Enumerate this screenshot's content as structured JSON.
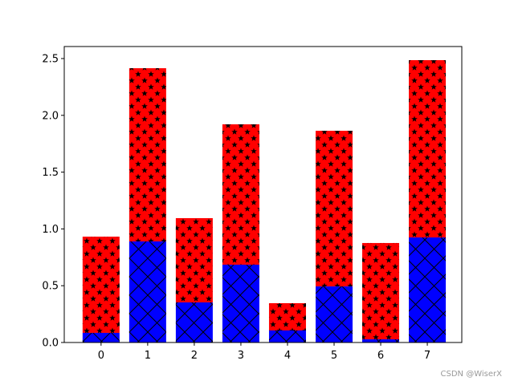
{
  "chart_data": {
    "type": "bar",
    "stacked": true,
    "categories": [
      "0",
      "1",
      "2",
      "3",
      "4",
      "5",
      "6",
      "7"
    ],
    "series": [
      {
        "color": "#0000ff",
        "hatch": "x",
        "values": [
          0.085,
          0.89,
          0.353,
          0.685,
          0.106,
          0.494,
          0.028,
          0.925
        ]
      },
      {
        "color": "#ff0000",
        "hatch": "*",
        "values": [
          0.847,
          1.525,
          0.742,
          1.236,
          0.24,
          1.37,
          0.848,
          1.561
        ]
      }
    ],
    "ylim": [
      0,
      2.606
    ],
    "yticks": [
      {
        "value": 0,
        "label": "0.0"
      },
      {
        "value": 0.5,
        "label": "0.5"
      },
      {
        "value": 1,
        "label": "1.0"
      },
      {
        "value": 1.5,
        "label": "1.5"
      },
      {
        "value": 2,
        "label": "2.0"
      },
      {
        "value": 2.5,
        "label": "2.5"
      }
    ],
    "grid": false
  },
  "watermark": "CSDN @WiserX"
}
